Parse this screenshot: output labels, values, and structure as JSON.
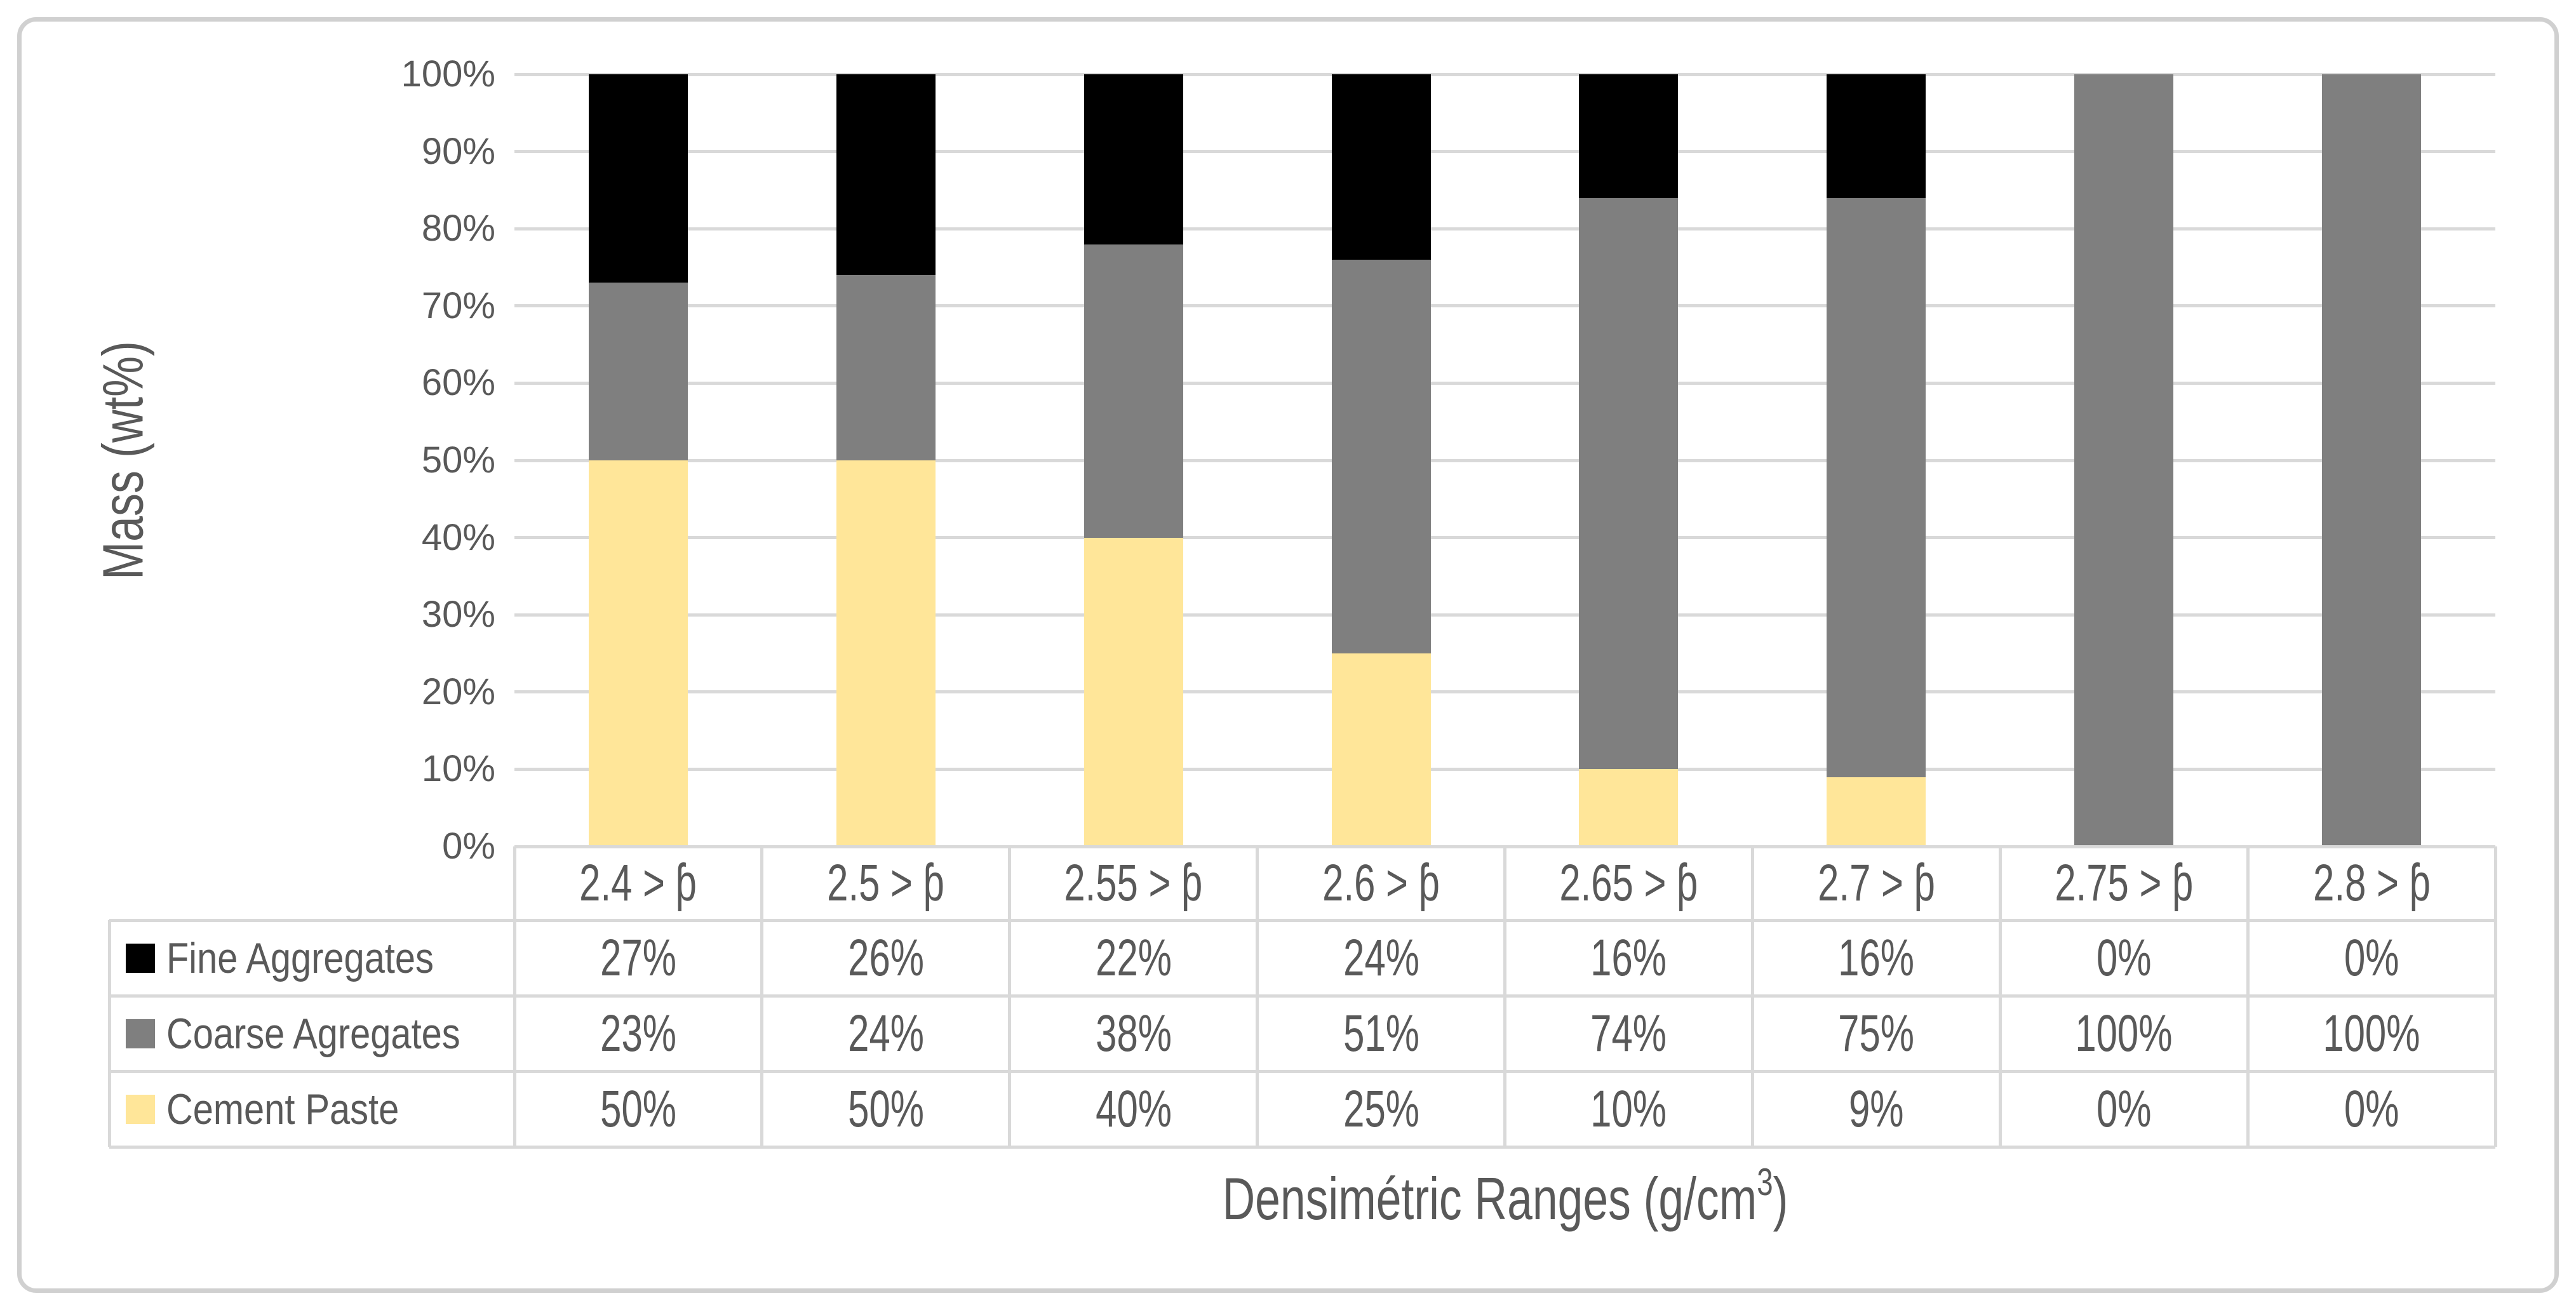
{
  "chart_data": {
    "type": "bar",
    "stacked": true,
    "title": "",
    "xlabel": "Densimétric Ranges (g/cm³)",
    "ylabel": "Mass (wt%)",
    "ylim": [
      0,
      100
    ],
    "y_ticks": [
      "0%",
      "10%",
      "20%",
      "30%",
      "40%",
      "50%",
      "60%",
      "70%",
      "80%",
      "90%",
      "100%"
    ],
    "grid": "horizontal",
    "legend_position": "table-left",
    "categories": [
      "2.4 > ƥ",
      "2.5 > ƥ",
      "2.55 > ƥ",
      "2.6 > ƥ",
      "2.65 > ƥ",
      "2.7 > ƥ",
      "2.75 > ƥ",
      "2.8 > ƥ"
    ],
    "series": [
      {
        "name": "Fine Aggregates",
        "color": "#000000",
        "values": [
          27,
          26,
          22,
          24,
          16,
          16,
          0,
          0
        ]
      },
      {
        "name": "Coarse Agregates",
        "color": "#7f7f7f",
        "values": [
          23,
          24,
          38,
          51,
          74,
          75,
          100,
          100
        ]
      },
      {
        "name": "Cement Paste",
        "color": "#ffe699",
        "values": [
          50,
          50,
          40,
          25,
          10,
          9,
          0,
          0
        ]
      }
    ],
    "stack_order_bottom_to_top": [
      "Cement Paste",
      "Coarse Agregates",
      "Fine Aggregates"
    ]
  },
  "table": {
    "header_row": [
      "2.4 > ƥ",
      "2.5 > ƥ",
      "2.55 > ƥ",
      "2.6 > ƥ",
      "2.65 > ƥ",
      "2.7 > ƥ",
      "2.75 > ƥ",
      "2.8 > ƥ"
    ],
    "rows": [
      {
        "label": "Fine Aggregates",
        "swatch": "#000000",
        "values": [
          "27%",
          "26%",
          "22%",
          "24%",
          "16%",
          "16%",
          "0%",
          "0%"
        ]
      },
      {
        "label": "Coarse Agregates",
        "swatch": "#7f7f7f",
        "values": [
          "23%",
          "24%",
          "38%",
          "51%",
          "74%",
          "75%",
          "100%",
          "100%"
        ]
      },
      {
        "label": "Cement Paste",
        "swatch": "#ffe699",
        "values": [
          "50%",
          "50%",
          "40%",
          "25%",
          "10%",
          "9%",
          "0%",
          "0%"
        ]
      }
    ]
  },
  "colors": {
    "text": "#595959",
    "gridline": "#d9d9d9",
    "table_border": "#d9d9d9",
    "page_border": "#d0d0d0",
    "background": "#ffffff"
  }
}
